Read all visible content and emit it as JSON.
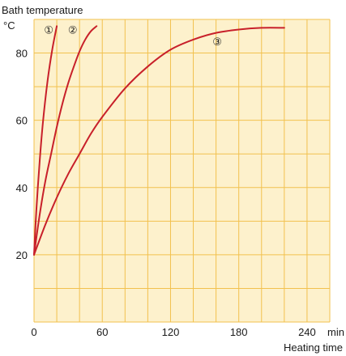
{
  "chart_data": {
    "type": "line",
    "ylabel_title": "Bath temperature",
    "ylabel_unit": "°C",
    "xlabel_unit": "min",
    "xlabel": "Heating time",
    "xlim": [
      0,
      260
    ],
    "ylim": [
      0,
      90
    ],
    "x_ticks": [
      0,
      60,
      120,
      180,
      240
    ],
    "x_tick_labels": [
      "0",
      "60",
      "120",
      "180",
      "240"
    ],
    "y_ticks": [
      20,
      40,
      60,
      80
    ],
    "y_tick_labels": [
      "20",
      "40",
      "60",
      "80"
    ],
    "grid": true,
    "colors": {
      "background": "#fdf1cc",
      "grid": "#f2c14e",
      "line": "#c8202a"
    },
    "series": [
      {
        "marker": "①",
        "x": [
          0,
          2,
          5,
          8,
          12,
          16,
          20
        ],
        "y": [
          20,
          33,
          48,
          60,
          72,
          81,
          88
        ]
      },
      {
        "marker": "②",
        "x": [
          0,
          5,
          10,
          15,
          20,
          25,
          30,
          35,
          40,
          45,
          50,
          55
        ],
        "y": [
          20,
          32,
          42,
          50,
          58,
          65,
          71,
          76,
          80.5,
          84,
          86.5,
          88
        ]
      },
      {
        "marker": "③",
        "x": [
          0,
          10,
          20,
          30,
          40,
          50,
          60,
          80,
          100,
          120,
          140,
          160,
          180,
          200,
          220
        ],
        "y": [
          20,
          29,
          37,
          44,
          50,
          56,
          61,
          69.5,
          76,
          81,
          84,
          86,
          87,
          87.5,
          87.5
        ]
      }
    ]
  }
}
